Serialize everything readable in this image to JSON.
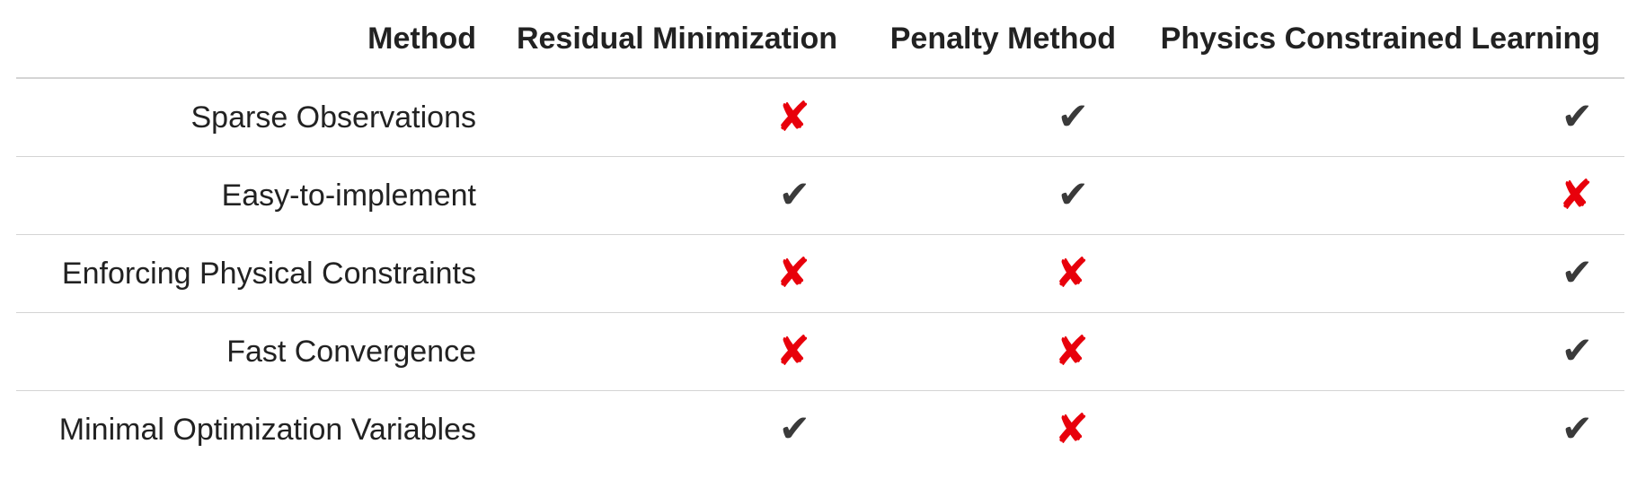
{
  "table": {
    "headers": [
      "Method",
      "Residual Minimization",
      "Penalty Method",
      "Physics Constrained Learning"
    ],
    "rows": [
      {
        "label": "Sparse Observations",
        "values": [
          "cross",
          "check",
          "check"
        ]
      },
      {
        "label": "Easy-to-implement",
        "values": [
          "check",
          "check",
          "cross"
        ]
      },
      {
        "label": "Enforcing Physical Constraints",
        "values": [
          "cross",
          "cross",
          "check"
        ]
      },
      {
        "label": "Fast Convergence",
        "values": [
          "cross",
          "cross",
          "check"
        ]
      },
      {
        "label": "Minimal Optimization Variables",
        "values": [
          "check",
          "cross",
          "check"
        ]
      }
    ]
  },
  "symbols": {
    "check": "✔",
    "cross": "✘"
  },
  "colors": {
    "check": "#3a3a3a",
    "cross": "#e8000b",
    "rule": "#d4d4d4"
  }
}
